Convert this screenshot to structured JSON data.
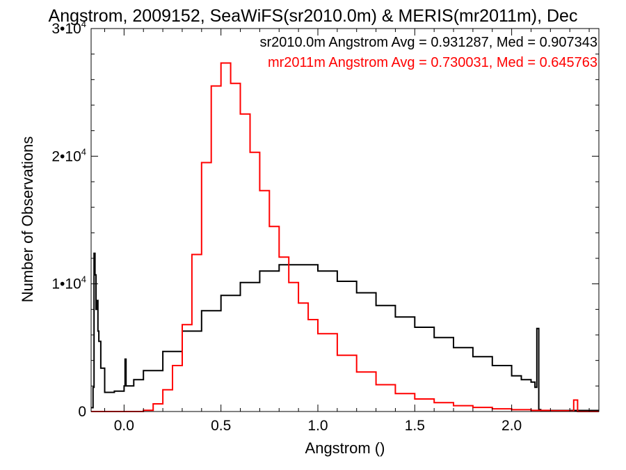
{
  "chart_data": {
    "type": "line",
    "title": "Angstrom, 2009152, SeaWiFS(sr2010.0m) & MERIS(mr2011m), Dec",
    "xlabel": "Angstrom ()",
    "ylabel": "Number of Observations",
    "xlim": [
      -0.17,
      2.45
    ],
    "ylim": [
      0,
      30000
    ],
    "xticks": [
      0.0,
      0.5,
      1.0,
      1.5,
      2.0
    ],
    "xtick_labels": [
      "0.0",
      "0.5",
      "1.0",
      "1.5",
      "2.0"
    ],
    "yticks": [
      0,
      10000,
      20000,
      30000
    ],
    "ytick_labels": [
      {
        "mantissa": "0",
        "exponent": ""
      },
      {
        "mantissa": "1•10",
        "exponent": "4"
      },
      {
        "mantissa": "2•10",
        "exponent": "4"
      },
      {
        "mantissa": "3•10",
        "exponent": "4"
      }
    ],
    "legend_position": "top-right",
    "series": [
      {
        "name": "sr2010.0m",
        "legend_text": "sr2010.0m Angstrom Avg = 0.931287, Med = 0.907343",
        "color": "#000000",
        "x": [
          -0.17,
          -0.16,
          -0.155,
          -0.15,
          -0.145,
          -0.14,
          -0.135,
          -0.13,
          -0.12,
          -0.1,
          -0.05,
          0.0,
          0.005,
          0.01,
          0.05,
          0.1,
          0.2,
          0.3,
          0.4,
          0.5,
          0.6,
          0.7,
          0.8,
          0.9,
          1.0,
          1.1,
          1.2,
          1.3,
          1.4,
          1.5,
          1.6,
          1.7,
          1.8,
          1.9,
          2.0,
          2.05,
          2.1,
          2.12,
          2.13,
          2.14,
          2.15,
          2.3
        ],
        "y": [
          300,
          1900,
          12400,
          10700,
          8000,
          8700,
          6300,
          5500,
          3400,
          1500,
          1600,
          2000,
          4100,
          2000,
          2500,
          3200,
          4700,
          6300,
          7900,
          9100,
          10100,
          11000,
          11500,
          11500,
          11000,
          10200,
          9300,
          8300,
          7400,
          6600,
          5800,
          5000,
          4300,
          3600,
          2800,
          2500,
          2300,
          1900,
          6500,
          150,
          80,
          80
        ]
      },
      {
        "name": "mr2011m",
        "legend_text": "mr2011m Angstrom Avg = 0.730031, Med = 0.645763",
        "color": "#ff0000",
        "x": [
          -0.17,
          0.07,
          0.1,
          0.15,
          0.2,
          0.25,
          0.3,
          0.35,
          0.4,
          0.45,
          0.5,
          0.55,
          0.6,
          0.65,
          0.7,
          0.75,
          0.8,
          0.85,
          0.9,
          0.95,
          1.0,
          1.1,
          1.2,
          1.3,
          1.4,
          1.5,
          1.6,
          1.7,
          1.8,
          1.9,
          2.0,
          2.1,
          2.2,
          2.3,
          2.32,
          2.33,
          2.34,
          2.45
        ],
        "y": [
          0,
          0,
          100,
          600,
          1700,
          3600,
          6800,
          12300,
          19500,
          25500,
          27300,
          25700,
          23300,
          20300,
          17300,
          14500,
          12100,
          10100,
          8500,
          7200,
          6100,
          4400,
          3100,
          2100,
          1400,
          980,
          700,
          460,
          320,
          210,
          140,
          90,
          60,
          30,
          900,
          900,
          0,
          0
        ]
      }
    ]
  }
}
